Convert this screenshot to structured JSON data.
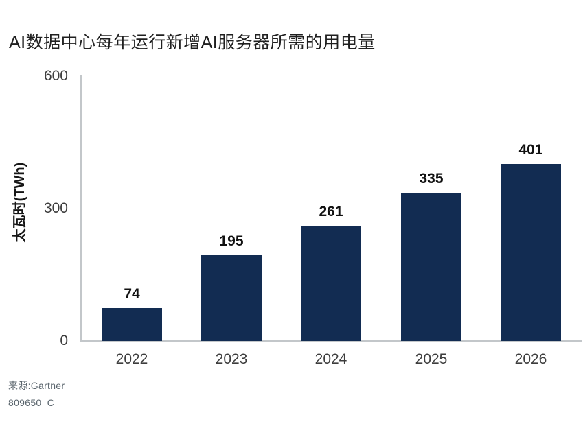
{
  "page": {
    "title": "AI数据中心每年运行新增AI服务器所需的用电量",
    "source_line1": "来源:Gartner",
    "source_line2": "809650_C"
  },
  "chart_data": {
    "type": "bar",
    "title": "AI数据中心每年运行新增AI服务器所需的用电量",
    "categories": [
      "2022",
      "2023",
      "2024",
      "2025",
      "2026"
    ],
    "values": [
      74,
      195,
      261,
      335,
      401
    ],
    "xlabel": "",
    "ylabel": "太瓦时(TWh)",
    "ylim": [
      0,
      600
    ],
    "yticks": [
      0,
      300,
      600
    ],
    "grid": false,
    "legend": false,
    "value_labels_shown": true,
    "source": [
      "来源:Gartner",
      "809650_C"
    ]
  },
  "colors": {
    "bar": "#122c52",
    "axis_line": "#c3c7ca",
    "title_text": "#1f1f1f",
    "value_label_text": "#111111",
    "tick_text": "#3d3d3d",
    "source_text": "#5a656d",
    "background": "#ffffff"
  }
}
